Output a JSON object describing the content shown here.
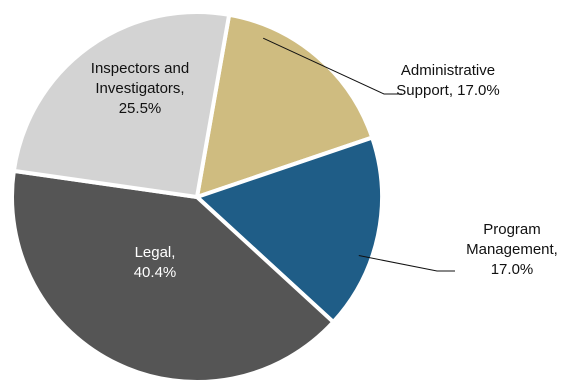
{
  "chart_data": {
    "type": "pie",
    "title": "",
    "slices": [
      {
        "label_lines": [
          "Administrative",
          "Support, 17.0%"
        ],
        "value": 17.0,
        "color": "#CFBC80",
        "label_color": "#111111"
      },
      {
        "label_lines": [
          "Program",
          "Management,",
          "17.0%"
        ],
        "value": 17.0,
        "color": "#1F5D87",
        "label_color": "#111111"
      },
      {
        "label_lines": [
          "Legal,",
          "40.4%"
        ],
        "value": 40.4,
        "color": "#555555",
        "label_color": "#ffffff"
      },
      {
        "label_lines": [
          "Inspectors and",
          "Investigators,",
          "25.5%"
        ],
        "value": 25.5,
        "color": "#D3D3D3",
        "label_color": "#111111"
      }
    ]
  }
}
